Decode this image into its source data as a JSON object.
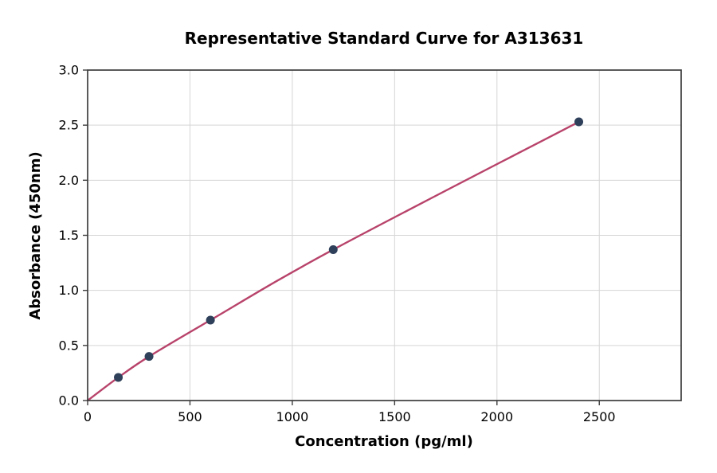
{
  "chart_data": {
    "type": "scatter",
    "title": "Representative Standard Curve for A313631",
    "xlabel": "Concentration (pg/ml)",
    "ylabel": "Absorbance (450nm)",
    "xlim": [
      0,
      2900
    ],
    "ylim": [
      0,
      3.0
    ],
    "xticks": [
      0,
      500,
      1000,
      1500,
      2000,
      2500
    ],
    "xtick_labels": [
      "0",
      "500",
      "1000",
      "1500",
      "2000",
      "2500"
    ],
    "yticks": [
      0.0,
      0.5,
      1.0,
      1.5,
      2.0,
      2.5,
      3.0
    ],
    "ytick_labels": [
      "0.0",
      "0.5",
      "1.0",
      "1.5",
      "2.0",
      "2.5",
      "3.0"
    ],
    "grid": true,
    "legend": null,
    "series": [
      {
        "name": "standard-curve-points",
        "x": [
          150,
          300,
          600,
          1200,
          2400
        ],
        "y": [
          0.21,
          0.4,
          0.73,
          1.37,
          2.53
        ]
      }
    ],
    "fit_curve": {
      "name": "fit-line",
      "x": [
        0,
        150,
        300,
        600,
        1200,
        2400
      ],
      "y": [
        0.0,
        0.21,
        0.4,
        0.73,
        1.37,
        2.53
      ]
    },
    "colors": {
      "line": "#b8436a",
      "marker": "#2f405a",
      "grid": "#d5d5d5",
      "spine": "#3d3d3d",
      "text": "#000000"
    }
  }
}
